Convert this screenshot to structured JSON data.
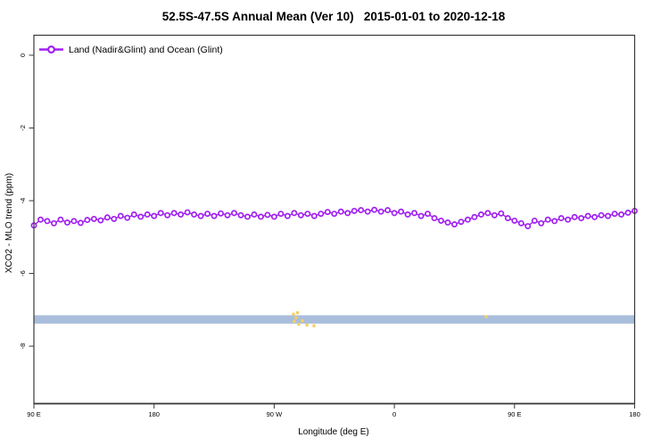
{
  "title": "52.5S-47.5S Annual Mean (Ver 10)   2015-01-01 to 2020-12-18",
  "colors": {
    "series": "#A020F0",
    "band": "#A9BEDB",
    "flags": "#F6CD60",
    "axis": "#3a3a3a",
    "text": "#000000"
  },
  "chart_data": {
    "type": "line",
    "title": "52.5S-47.5S Annual Mean (Ver 10)   2015-01-01 to 2020-12-18",
    "xlabel": "Longitude (deg E)",
    "ylabel": "XCO2 - MLO trend (ppm)",
    "xlim": [
      90,
      540
    ],
    "ylim": [
      -9.58,
      0.55
    ],
    "grid": false,
    "legend_position": "top-left",
    "xticks": [
      {
        "value": 90,
        "label": "90 E"
      },
      {
        "value": 180,
        "label": "180"
      },
      {
        "value": 270,
        "label": "90 W"
      },
      {
        "value": 360,
        "label": "0"
      },
      {
        "value": 450,
        "label": "90 E"
      },
      {
        "value": 540,
        "label": "180"
      }
    ],
    "yticks": [
      {
        "value": 0,
        "label": "0"
      },
      {
        "value": -2,
        "label": "-2"
      },
      {
        "value": -4,
        "label": "-4"
      },
      {
        "value": -6,
        "label": "-6"
      },
      {
        "value": -8,
        "label": "-8"
      }
    ],
    "legend": [
      {
        "label": "Land (Nadir&Glint) and Ocean (Glint)",
        "color": "#A020F0",
        "marker": "open-circle-line"
      }
    ],
    "band": {
      "name": "horizontal-band",
      "color": "#A9BEDB",
      "xmin": 90,
      "xmax": 540,
      "ymin": -7.38,
      "ymax": -7.15
    },
    "flag_points": {
      "name": "yellow-flags",
      "color": "#F6CD60",
      "points": [
        [
          284.4,
          -7.12
        ],
        [
          286.4,
          -7.22
        ],
        [
          285.1,
          -7.32
        ],
        [
          288.4,
          -7.4
        ],
        [
          291.1,
          -7.3
        ],
        [
          287.4,
          -7.08
        ],
        [
          294.5,
          -7.42
        ],
        [
          299.8,
          -7.44
        ],
        [
          428.8,
          -7.19
        ]
      ]
    },
    "series": [
      {
        "name": "Land (Nadir&Glint) and Ocean (Glint)",
        "color": "#A020F0",
        "marker": "open-circle",
        "x": [
          90,
          95,
          100,
          105,
          110,
          115,
          120,
          125,
          130,
          135,
          140,
          145,
          150,
          155,
          160,
          165,
          170,
          175,
          180,
          185,
          190,
          195,
          200,
          205,
          210,
          215,
          220,
          225,
          230,
          235,
          240,
          245,
          250,
          255,
          260,
          265,
          270,
          275,
          280,
          285,
          290,
          295,
          300,
          305,
          310,
          315,
          320,
          325,
          330,
          335,
          340,
          345,
          350,
          355,
          360,
          365,
          370,
          375,
          380,
          385,
          390,
          395,
          400,
          405,
          410,
          415,
          420,
          425,
          430,
          435,
          440,
          445,
          450,
          455,
          460,
          465,
          470,
          475,
          480,
          485,
          490,
          495,
          500,
          505,
          510,
          515,
          520,
          525,
          530,
          535,
          540
        ],
        "y": [
          -4.68,
          -4.52,
          -4.56,
          -4.62,
          -4.52,
          -4.6,
          -4.56,
          -4.61,
          -4.53,
          -4.5,
          -4.54,
          -4.46,
          -4.5,
          -4.42,
          -4.47,
          -4.38,
          -4.44,
          -4.38,
          -4.42,
          -4.34,
          -4.4,
          -4.34,
          -4.38,
          -4.32,
          -4.38,
          -4.42,
          -4.36,
          -4.42,
          -4.35,
          -4.4,
          -4.34,
          -4.4,
          -4.44,
          -4.38,
          -4.44,
          -4.39,
          -4.44,
          -4.36,
          -4.42,
          -4.34,
          -4.4,
          -4.36,
          -4.42,
          -4.36,
          -4.31,
          -4.36,
          -4.3,
          -4.34,
          -4.28,
          -4.26,
          -4.3,
          -4.25,
          -4.3,
          -4.26,
          -4.34,
          -4.3,
          -4.38,
          -4.34,
          -4.42,
          -4.36,
          -4.48,
          -4.55,
          -4.6,
          -4.65,
          -4.58,
          -4.52,
          -4.45,
          -4.38,
          -4.34,
          -4.4,
          -4.35,
          -4.48,
          -4.55,
          -4.62,
          -4.7,
          -4.55,
          -4.62,
          -4.52,
          -4.56,
          -4.48,
          -4.52,
          -4.45,
          -4.48,
          -4.42,
          -4.45,
          -4.4,
          -4.42,
          -4.36,
          -4.38,
          -4.33,
          -4.28
        ]
      }
    ]
  }
}
